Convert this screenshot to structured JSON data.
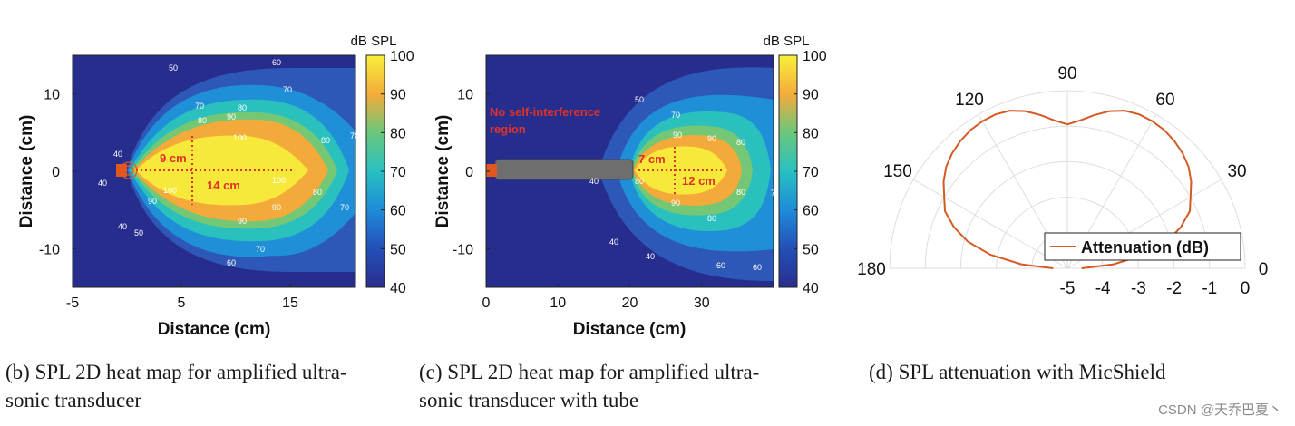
{
  "chart_data": [
    {
      "type": "heatmap",
      "id": "b",
      "caption_line1": "(b)  SPL 2D heat map for amplified ultra-",
      "caption_line2": "sonic transducer",
      "xlabel": "Distance (cm)",
      "ylabel": "Distance (cm)",
      "xlim": [
        -5,
        21
      ],
      "ylim": [
        -15,
        15
      ],
      "xticks": [
        -5,
        5,
        15
      ],
      "yticks": [
        10,
        0,
        -10
      ],
      "colorbar": {
        "label": "dB SPL",
        "range": [
          40,
          100
        ],
        "ticks": [
          100,
          90,
          80,
          70,
          60,
          50,
          40
        ]
      },
      "contour_levels": [
        40,
        50,
        60,
        70,
        80,
        90,
        100
      ],
      "annotations": [
        {
          "text": "9 cm",
          "dimension": "width of 100 dB region"
        },
        {
          "text": "14 cm",
          "dimension": "length of 100 dB region"
        }
      ],
      "contour_labels": [
        "50",
        "60",
        "70",
        "80",
        "90",
        "100",
        "40"
      ]
    },
    {
      "type": "heatmap",
      "id": "c",
      "caption_line1": "(c)  SPL 2D heat map for amplified ultra-",
      "caption_line2": "sonic transducer with tube",
      "xlabel": "Distance (cm)",
      "ylabel": "Distance (cm)",
      "xlim": [
        0,
        40
      ],
      "ylim": [
        -15,
        15
      ],
      "xticks": [
        0,
        10,
        20,
        30
      ],
      "yticks": [
        10,
        0,
        -10
      ],
      "colorbar": {
        "label": "dB SPL",
        "range": [
          40,
          100
        ],
        "ticks": [
          100,
          90,
          80,
          70,
          60,
          50,
          40
        ]
      },
      "contour_levels": [
        40,
        50,
        60,
        70,
        80,
        90,
        100
      ],
      "annotations": [
        {
          "text": "No self-interference region"
        },
        {
          "text": "7 cm",
          "dimension": "width of 100 dB region"
        },
        {
          "text": "12 cm",
          "dimension": "length of 100 dB region"
        }
      ],
      "contour_labels": [
        "50",
        "60",
        "70",
        "80",
        "90",
        "100",
        "40"
      ]
    },
    {
      "type": "line",
      "id": "d",
      "coordinate_system": "polar",
      "caption_line1": "(d)  SPL attenuation with MicShield",
      "angle_ticks": [
        0,
        30,
        60,
        90,
        120,
        150,
        180
      ],
      "radial_ticks": [
        -5,
        -4,
        -3,
        -2,
        -1,
        0
      ],
      "radial_range": [
        -5,
        0
      ],
      "legend": {
        "placement": "lower-right",
        "entries": [
          "Attenuation (dB)"
        ]
      },
      "series": [
        {
          "name": "Attenuation (dB)",
          "color": "#d45a24",
          "x": [
            0,
            5,
            10,
            15,
            20,
            25,
            30,
            35,
            40,
            45,
            50,
            55,
            60,
            65,
            70,
            75,
            80,
            85,
            90,
            95,
            100,
            105,
            110,
            115,
            120,
            125,
            130,
            135,
            140,
            145,
            150,
            155,
            160,
            165,
            170,
            175,
            180
          ],
          "values": [
            -4.6,
            -3.7,
            -2.8,
            -2.1,
            -1.6,
            -1.2,
            -1.0,
            -0.75,
            -0.55,
            -0.42,
            -0.32,
            -0.25,
            -0.22,
            -0.22,
            -0.28,
            -0.42,
            -0.62,
            -0.82,
            -0.95,
            -0.82,
            -0.62,
            -0.42,
            -0.28,
            -0.22,
            -0.22,
            -0.25,
            -0.32,
            -0.42,
            -0.55,
            -0.75,
            -1.0,
            -1.2,
            -1.6,
            -2.1,
            -2.8,
            -3.7,
            -4.6
          ]
        }
      ]
    }
  ],
  "watermark": "CSDN @天乔巴夏丶"
}
